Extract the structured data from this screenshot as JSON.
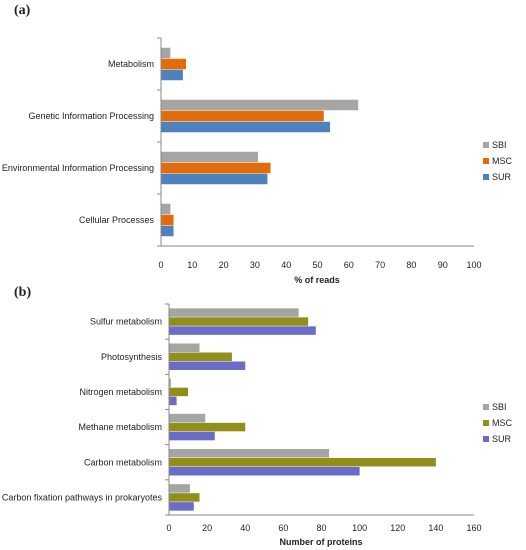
{
  "chart_data": [
    {
      "panel_label": "(a)",
      "type": "bar",
      "orientation": "horizontal",
      "categories": [
        "Metabolism",
        "Genetic Information Processing",
        "Environmental Information Processing",
        "Cellular Processes"
      ],
      "series": [
        {
          "name": "SBI",
          "color": "#a5a5a5",
          "values": [
            3,
            63,
            31,
            3
          ]
        },
        {
          "name": "MSC",
          "color": "#e36c0a",
          "values": [
            8,
            52,
            35,
            4
          ]
        },
        {
          "name": "SUR",
          "color": "#4f81bd",
          "values": [
            7,
            54,
            34,
            4
          ]
        }
      ],
      "xlabel": "% of reads",
      "xlim": [
        0,
        100
      ],
      "xticks": [
        0,
        10,
        20,
        30,
        40,
        50,
        60,
        70,
        80,
        90,
        100
      ],
      "grid": false,
      "legend": "right"
    },
    {
      "panel_label": "(b)",
      "type": "bar",
      "orientation": "horizontal",
      "categories": [
        "Sulfur metabolism",
        "Photosynthesis",
        "Nitrogen metabolism",
        "Methane metabolism",
        "Carbon metabolism",
        "Carbon fixation pathways in prokaryotes"
      ],
      "series": [
        {
          "name": "SBI",
          "color": "#a5a5a5",
          "values": [
            68,
            16,
            1,
            19,
            84,
            11
          ]
        },
        {
          "name": "MSC",
          "color": "#8f8f1a",
          "values": [
            73,
            33,
            10,
            40,
            140,
            16
          ]
        },
        {
          "name": "SUR",
          "color": "#6b6bc8",
          "values": [
            77,
            40,
            4,
            24,
            100,
            13
          ]
        }
      ],
      "xlabel": "Number of proteins",
      "xlim": [
        0,
        160
      ],
      "xticks": [
        0,
        20,
        40,
        60,
        80,
        100,
        120,
        140,
        160
      ],
      "grid": false,
      "legend": "right"
    }
  ]
}
